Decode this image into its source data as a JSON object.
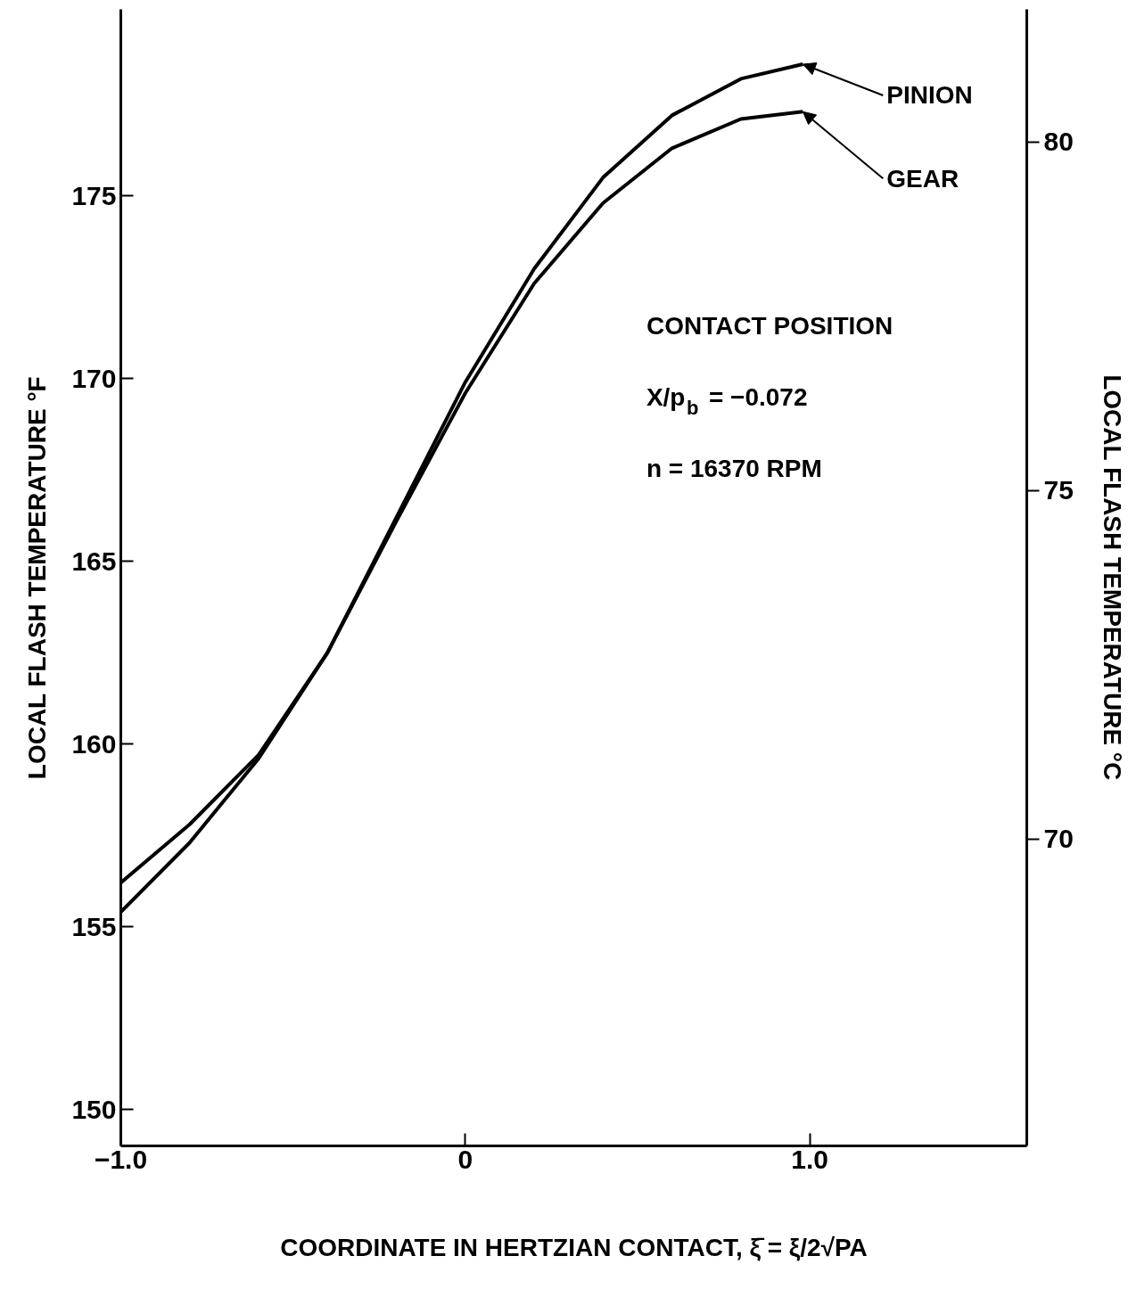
{
  "chart_data": {
    "type": "line",
    "xlabel": "COORDINATE IN HERTZIAN CONTACT, ξ̄ = ξ/2√PA",
    "ylabel": "LOCAL FLASH TEMPERATURE °F",
    "y2label": "LOCAL FLASH TEMPERATURE °C",
    "x": [
      -1.0,
      -0.8,
      -0.6,
      -0.4,
      -0.2,
      0.0,
      0.2,
      0.4,
      0.6,
      0.8,
      0.98
    ],
    "series": [
      {
        "color": "#000000",
        "values": [
          156.2,
          157.8,
          159.7,
          162.5,
          166.2,
          169.9,
          173.0,
          175.5,
          177.2,
          178.2,
          178.6
        ]
      },
      {
        "color": "#000000",
        "values": [
          155.4,
          157.3,
          159.6,
          162.5,
          166.1,
          169.6,
          172.6,
          174.8,
          176.3,
          177.1,
          177.3
        ]
      }
    ],
    "xlim": [
      -1.0,
      1.63
    ],
    "xticks": [
      {
        "value": -1.0,
        "label": "−1.0"
      },
      0,
      {
        "value": 1.0,
        "label": "1.0"
      }
    ],
    "ylim": [
      149.0,
      180.1
    ],
    "yticks": [
      150,
      155,
      160,
      165,
      170,
      175
    ],
    "y2lim": [
      65.6,
      81.9
    ],
    "y2ticks": [
      70,
      75,
      80
    ],
    "annotations": [
      {
        "text": "PINION",
        "x": 0.98,
        "y": 178.6
      },
      {
        "text": "GEAR",
        "x": 0.98,
        "y": 177.3
      },
      "CONTACT POSITION",
      "X/p$_{b}$ = −0.072",
      "n = 16370 RPM"
    ],
    "legend": false,
    "grid": false,
    "marker": "none",
    "line_style": "solid"
  }
}
